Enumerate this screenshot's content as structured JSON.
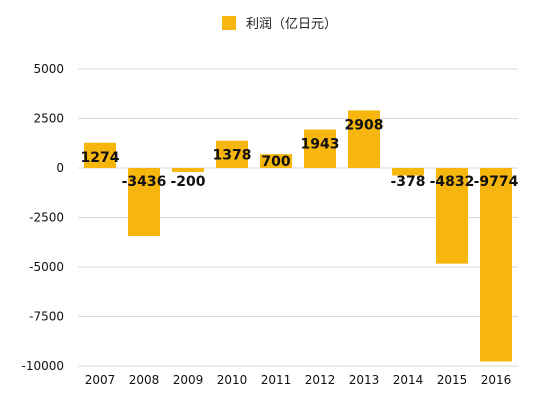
{
  "legend": {
    "label": "利润（亿日元）",
    "color": "#F6B60D"
  },
  "chart_data": {
    "type": "bar",
    "categories": [
      "2007",
      "2008",
      "2009",
      "2010",
      "2011",
      "2012",
      "2013",
      "2014",
      "2015",
      "2016"
    ],
    "series": [
      {
        "name": "利润（亿日元）",
        "values": [
          1274,
          -3436,
          -200,
          1378,
          700,
          1943,
          2908,
          -378,
          -4832,
          -9774
        ]
      }
    ],
    "data_labels": [
      "1274",
      "-3436",
      "-200",
      "1378",
      "700",
      "1943",
      "2908",
      "-378",
      "-4832",
      "-9774"
    ],
    "y_ticks": [
      "5000",
      "2500",
      "0",
      "-2500",
      "-5000",
      "-7500",
      "-10000"
    ],
    "ylim": [
      -10000,
      5000
    ],
    "grid": true,
    "legend_position": "top-center",
    "bar_color": "#F6B60D",
    "grid_color": "#D9D9D9"
  }
}
